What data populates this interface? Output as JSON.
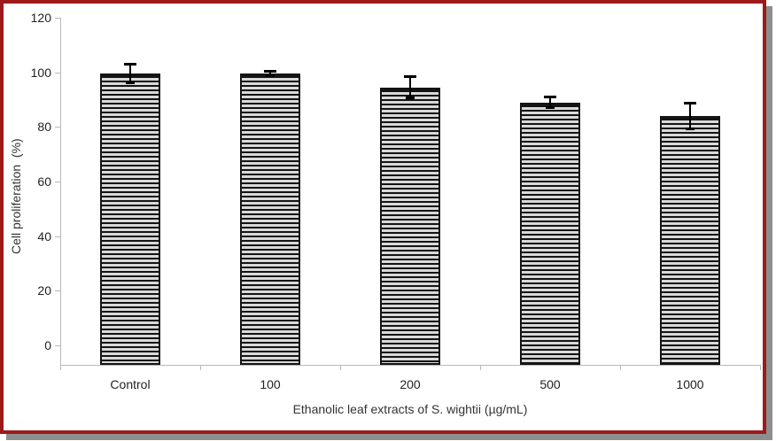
{
  "frame": {
    "border_color": "#9d1a1a",
    "shadow_color": "#8e8e8e",
    "background": "#ffffff"
  },
  "chart_data": {
    "type": "bar",
    "title": "",
    "categories": [
      "Control",
      "100",
      "200",
      "500",
      "1000"
    ],
    "values": [
      99.5,
      99.5,
      94.5,
      89,
      84
    ],
    "errors": [
      3.5,
      1,
      4,
      2,
      5
    ],
    "xlabel": "Ethanolic leaf extracts of S. wightii (µg/mL)",
    "ylabel": "Cell proliferation  (%)",
    "ylim": [
      0,
      120
    ],
    "yticks": [
      0,
      20,
      40,
      60,
      80,
      100,
      120
    ],
    "grid": false,
    "legend": false,
    "bar_style": "horizontal-line-hatch",
    "colors": {
      "bar_fill": "#d9d9d9",
      "bar_line": "#141414",
      "axis": "#b8b8b8",
      "text": "#222222"
    }
  }
}
